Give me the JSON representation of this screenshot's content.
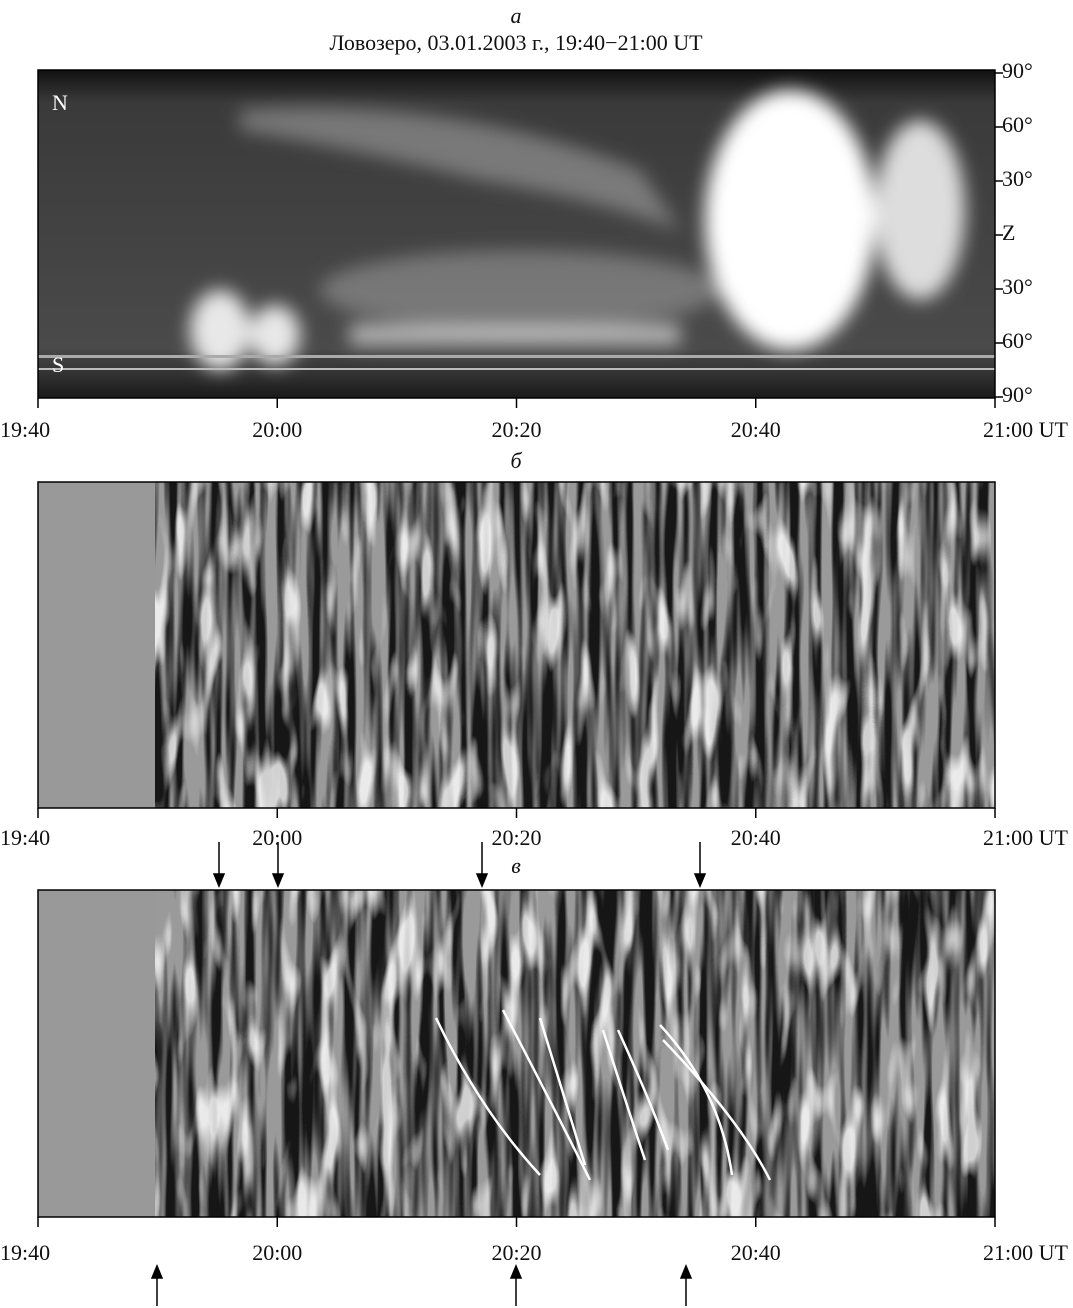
{
  "figure": {
    "panels": [
      {
        "label": "а",
        "title": "Ловозеро, 03.01.2003 г., 19:40−21:00 UT",
        "y_labels": [
          "90°",
          "60°",
          "30°",
          "Z",
          "30°",
          "60°",
          "90°"
        ],
        "side_labels": [
          "N",
          "S"
        ]
      },
      {
        "label": "б"
      },
      {
        "label": "в"
      }
    ],
    "x_tick_labels": [
      "19:40",
      "20:00",
      "20:20",
      "20:40",
      "21:00 UT"
    ]
  }
}
